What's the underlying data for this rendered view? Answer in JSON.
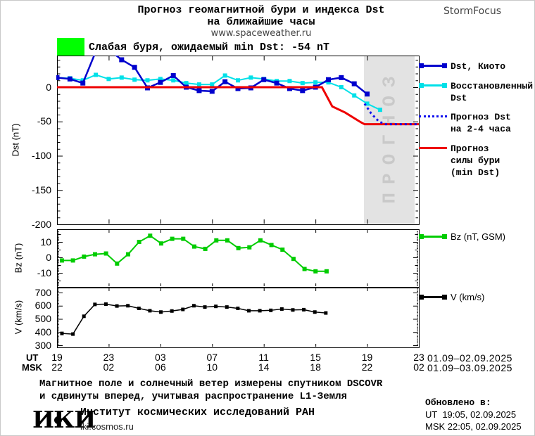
{
  "header": {
    "title_line1": "Прогноз геомагнитной бури и индекса Dst",
    "title_line2": "на ближайшие часы",
    "title_line3": "www.spaceweather.ru",
    "brand": "StormFocus"
  },
  "alert": {
    "label": "Слабая буря, ожидаемый min Dst: -54 nT",
    "color": "#00ff00"
  },
  "chart_data": [
    {
      "type": "line",
      "ylabel": "Dst (nT)",
      "ylim": [
        -200,
        46
      ],
      "yticks": [
        0,
        -50,
        -100,
        -150,
        -200
      ],
      "x_span_hours": 28,
      "x_start": "19:00 UT 01.09",
      "forecast_region": {
        "label": "ПРОГНОЗ",
        "start_hour": 23.75,
        "end_hour": 27.7,
        "bg": "#e3e3e3",
        "text_color": "#c9c9c9"
      },
      "series": [
        {
          "name": "Dst, Киото",
          "color": "#0000cd",
          "marker": true,
          "start_hour": 0,
          "step_hours": 1,
          "values": [
            14,
            12,
            6,
            52,
            55,
            40,
            29,
            -1,
            7,
            17,
            0,
            -5,
            -6,
            8,
            -2,
            -1,
            11,
            6,
            -2,
            -5,
            0,
            11,
            14,
            5,
            -10
          ]
        },
        {
          "name": "Восстановленный\nDst",
          "color": "#00e0e8",
          "marker": true,
          "start_hour": 0,
          "step_hours": 1,
          "values": [
            14,
            13,
            10,
            18,
            12,
            14,
            11,
            10,
            12,
            10,
            6,
            4,
            4,
            17,
            10,
            14,
            12,
            9,
            9,
            6,
            7,
            7,
            0,
            -12,
            -24,
            -33
          ]
        },
        {
          "name": "Прогноз Dst\nна 2-4 часа",
          "color": "#1111ee",
          "dotted": true,
          "points": [
            [
              23.8,
              -24
            ],
            [
              24.3,
              -38
            ],
            [
              24.9,
              -50
            ],
            [
              25.4,
              -54
            ],
            [
              28,
              -54
            ]
          ]
        },
        {
          "name": "Прогноз\nсилы бури\n(min Dst)",
          "color": "#ee0000",
          "points": [
            [
              0,
              0
            ],
            [
              20.5,
              0
            ],
            [
              21.3,
              -28
            ],
            [
              22.3,
              -37
            ],
            [
              23.5,
              -51
            ],
            [
              23.8,
              -54
            ],
            [
              28,
              -54
            ]
          ]
        }
      ]
    },
    {
      "type": "line",
      "ylabel": "Bz (nT)",
      "ylim": [
        -19,
        18
      ],
      "yticks": [
        10,
        0,
        -10
      ],
      "series": [
        {
          "name": "Bz (nT, GSM)",
          "color": "#00cc00",
          "marker": true,
          "start_hour": 0.38,
          "end_hour": 20.86,
          "values": [
            -2,
            -2,
            0.5,
            2,
            2.5,
            -4,
            2,
            10,
            14,
            9,
            12,
            12,
            7,
            5.5,
            11,
            11,
            6,
            6.5,
            11,
            8,
            5,
            -1,
            -7.5,
            -9,
            -9
          ]
        }
      ]
    },
    {
      "type": "line",
      "ylabel": "V (km/s)",
      "ylim": [
        280,
        735
      ],
      "yticks": [
        700,
        600,
        500,
        400,
        300
      ],
      "series": [
        {
          "name": "V (km/s)",
          "color": "#000000",
          "marker": true,
          "start_hour": 0.38,
          "end_hour": 20.8,
          "values": [
            390,
            385,
            520,
            610,
            612,
            598,
            600,
            580,
            562,
            552,
            560,
            572,
            600,
            590,
            595,
            590,
            580,
            562,
            562,
            565,
            575,
            568,
            570,
            552,
            545
          ]
        }
      ]
    }
  ],
  "xaxis": {
    "ut_label": "UT",
    "msk_label": "MSK",
    "xticks_hours": [
      0,
      4,
      8,
      12,
      16,
      20,
      24,
      28
    ],
    "ut_hours": [
      "19",
      "23",
      "03",
      "07",
      "11",
      "15",
      "19",
      "23"
    ],
    "msk_hours": [
      "22",
      "02",
      "06",
      "10",
      "14",
      "18",
      "22",
      "02"
    ],
    "ut_dates": "01.09–02.09.2025",
    "msk_dates": "01.09–03.09.2025"
  },
  "footer": {
    "note_line1": "Магнитное поле и солнечный ветер измерены спутником DSCOVR",
    "note_line2": "и сдвинуты вперед, учитывая распространение L1-Земля",
    "logo_text": "ИКИ",
    "institute": "Институт космических исследований РАН",
    "site": "iki.cosmos.ru",
    "updated_label": "Обновлено в:",
    "updated_ut": "UT  19:05, 02.09.2025",
    "updated_msk": "MSK 22:05, 02.09.2025"
  }
}
